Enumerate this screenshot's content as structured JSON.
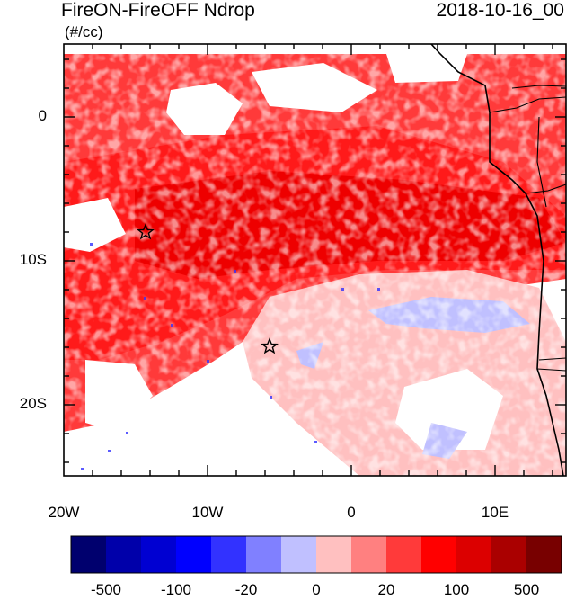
{
  "title_left": "FireON-FireOFF Ndrop",
  "title_right": "2018-10-16_00",
  "units": "(#/cc)",
  "map": {
    "lon_range": [
      -20,
      15
    ],
    "lat_range": [
      -25,
      5
    ],
    "x_ticks": [
      "20W",
      "10W",
      "0",
      "10E"
    ],
    "y_ticks": [
      "0",
      "10S",
      "20S"
    ],
    "markers": [
      {
        "name": "star",
        "lon": -14.3,
        "lat": -8.0
      },
      {
        "name": "star",
        "lon": -5.7,
        "lat": -16.0
      }
    ]
  },
  "colorbar": {
    "colors": [
      "#00006e",
      "#0000aa",
      "#0000d2",
      "#0000ff",
      "#3232ff",
      "#8080ff",
      "#c0c0ff",
      "#ffc0c0",
      "#ff8080",
      "#ff3a3a",
      "#ff0000",
      "#dc0000",
      "#aa0000",
      "#780000"
    ],
    "labels": [
      "-500",
      "-100",
      "-20",
      "0",
      "20",
      "100",
      "500"
    ]
  }
}
